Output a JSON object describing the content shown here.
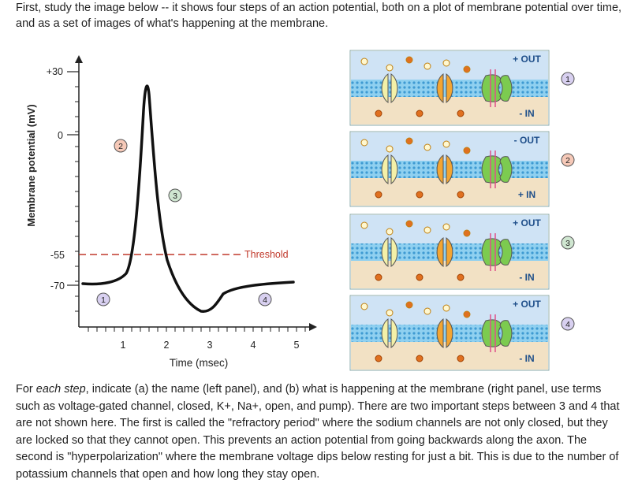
{
  "intro_text": "First, study the image below -- it shows four steps of an action potential, both on a plot of membrane potential over time, and as a set of images of what's happening at the membrane.",
  "plot": {
    "ylabel": "Membrane potential (mV)",
    "xlabel": "Time (msec)",
    "y_ticks": [
      "+30",
      "0",
      "-55",
      "-70"
    ],
    "x_ticks": [
      "1",
      "2",
      "3",
      "4",
      "5"
    ],
    "threshold_label": "Threshold",
    "step_markers": [
      "1",
      "2",
      "3",
      "4"
    ]
  },
  "chart_data": {
    "type": "line",
    "title": "",
    "xlabel": "Time (msec)",
    "ylabel": "Membrane potential (mV)",
    "xlim": [
      0,
      5
    ],
    "x": [
      0,
      0.5,
      0.9,
      1.2,
      1.45,
      1.6,
      1.75,
      1.85,
      2.0,
      2.2,
      2.5,
      2.8,
      3.0,
      3.3,
      3.7,
      4.2,
      4.8
    ],
    "y": [
      -70,
      -70,
      -68,
      -62,
      -30,
      20,
      38,
      10,
      -35,
      -60,
      -75,
      -80,
      -78,
      -70,
      -69,
      -68,
      -67
    ],
    "threshold": -55,
    "grid": false
  },
  "panels": [
    {
      "number": "1",
      "top_label": "+ OUT",
      "bottom_label": "- IN"
    },
    {
      "number": "2",
      "top_label": "- OUT",
      "bottom_label": "+ IN"
    },
    {
      "number": "3",
      "top_label": "+ OUT",
      "bottom_label": "- IN"
    },
    {
      "number": "4",
      "top_label": "+ OUT",
      "bottom_label": "- IN"
    }
  ],
  "colors": {
    "sodium_channel": "#f3f0a8",
    "potassium_channel": "#f3a532",
    "pump": "#7ccb50",
    "outside": "#cfe3f5",
    "inside": "#f2e1c4",
    "membrane": "#5cb6e6",
    "threshold": "#c0392b",
    "ion_orange": "#e07020"
  },
  "outro": {
    "part1_pre": "For ",
    "part1_em": "each step",
    "part1_post": ", indicate (a) the name (left panel), and (b) what is happening at the membrane (right panel, use terms such as voltage-gated channel, closed, K+, Na+, open, and pump). There are two important steps between 3 and 4 that are not shown here. The first is called the \"refractory period\" where the sodium channels are not only closed, but they are locked so that they cannot open. This prevents an action potential from going backwards along the axon. The second is \"hyperpolarization\" where the membrane voltage dips below resting for just a bit. This is due to the number of potassium channels that open and how long they stay open."
  }
}
